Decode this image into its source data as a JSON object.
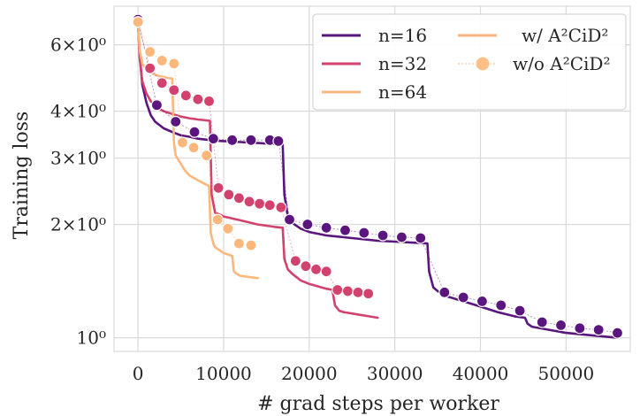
{
  "colors": {
    "n16": "#5a167e",
    "n32": "#d1426f",
    "n64": "#fcb77c",
    "grid": "#d9d9d9",
    "axes_bg": "#ffffff",
    "legend_line": "#fbb37c",
    "legend_marker": "#fdbf86"
  },
  "chart_data": {
    "type": "line",
    "xlabel": "# grad steps per worker",
    "ylabel": "Training loss",
    "yscale": "log",
    "xlim": [
      -2800,
      57500
    ],
    "ylim": [
      0.92,
      7.6
    ],
    "xticks": [
      0,
      10000,
      20000,
      30000,
      40000,
      50000
    ],
    "xtick_labels": [
      "0",
      "10000",
      "20000",
      "30000",
      "40000",
      "50000"
    ],
    "yticks": [
      1,
      2,
      3,
      4,
      6
    ],
    "ytick_labels": [
      "10⁰",
      "2×10⁰",
      "3×10⁰",
      "4×10⁰",
      "6×10⁰"
    ],
    "grid": true,
    "legend_position": "top-right",
    "legend": [
      "n=16",
      "n=32",
      "n=64",
      "w/ A²CiD²",
      "w/o A²CiD²"
    ],
    "series": [
      {
        "name": "n=16",
        "color_key": "n16",
        "style": "solid",
        "x": [
          0,
          200,
          500,
          1000,
          1500,
          2000,
          3000,
          4000,
          5000,
          6000,
          7000,
          8000,
          9000,
          10000,
          11000,
          12000,
          13000,
          14000,
          15000,
          16000,
          16900,
          17100,
          17500,
          18000,
          19000,
          20000,
          22000,
          24000,
          26000,
          28000,
          30000,
          32000,
          33800,
          34000,
          34500,
          35000,
          36000,
          38000,
          40000,
          42000,
          44000,
          45200,
          45500,
          46000,
          48000,
          50000,
          52000,
          54000,
          56000
        ],
        "y": [
          6.9,
          5.6,
          4.7,
          4.2,
          3.9,
          3.75,
          3.6,
          3.52,
          3.45,
          3.42,
          3.38,
          3.36,
          3.34,
          3.33,
          3.32,
          3.31,
          3.3,
          3.29,
          3.28,
          3.27,
          3.26,
          2.4,
          2.1,
          2.02,
          1.95,
          1.91,
          1.87,
          1.85,
          1.83,
          1.81,
          1.8,
          1.79,
          1.78,
          1.5,
          1.36,
          1.33,
          1.29,
          1.25,
          1.21,
          1.17,
          1.14,
          1.13,
          1.09,
          1.07,
          1.05,
          1.03,
          1.02,
          1.01,
          1.0
        ]
      },
      {
        "name": "n=32",
        "color_key": "n32",
        "style": "solid",
        "x": [
          0,
          200,
          500,
          1000,
          1500,
          2000,
          2500,
          3000,
          4000,
          5000,
          6000,
          7000,
          8000,
          8400,
          8600,
          9000,
          10000,
          12000,
          14000,
          16000,
          16900,
          17100,
          17500,
          18000,
          19000,
          20000,
          21000,
          22000,
          22700,
          23000,
          23500,
          24000,
          25000,
          26000,
          27000,
          28000
        ],
        "y": [
          6.9,
          5.5,
          4.8,
          4.45,
          4.25,
          4.15,
          4.05,
          4.0,
          3.93,
          3.87,
          3.83,
          3.8,
          3.78,
          3.77,
          2.4,
          2.15,
          2.1,
          2.05,
          2.0,
          1.97,
          1.96,
          1.62,
          1.52,
          1.48,
          1.42,
          1.39,
          1.37,
          1.35,
          1.34,
          1.22,
          1.18,
          1.17,
          1.16,
          1.15,
          1.14,
          1.13
        ]
      },
      {
        "name": "n=64",
        "color_key": "n64",
        "style": "solid",
        "x": [
          0,
          200,
          500,
          1000,
          1500,
          2000,
          2500,
          3000,
          3500,
          4000,
          4200,
          4400,
          5000,
          5500,
          6000,
          7000,
          8000,
          8300,
          8500,
          8800,
          9000,
          10000,
          11000,
          11200,
          11500,
          12000,
          13000,
          14000
        ],
        "y": [
          6.9,
          5.8,
          5.35,
          5.15,
          5.05,
          5.0,
          4.95,
          4.93,
          4.9,
          4.88,
          3.3,
          3.05,
          2.9,
          2.78,
          2.7,
          2.62,
          2.55,
          2.53,
          1.9,
          1.78,
          1.74,
          1.68,
          1.65,
          1.5,
          1.48,
          1.46,
          1.45,
          1.44
        ]
      },
      {
        "name": "n=16 w/o A²CiD²",
        "color_key": "n16",
        "style": "markers",
        "x": [
          0,
          2200,
          4400,
          6600,
          8800,
          11000,
          13200,
          15400,
          16400,
          17700,
          19800,
          22000,
          24200,
          26400,
          28600,
          30800,
          33000,
          35800,
          38000,
          40200,
          42400,
          44600,
          47200,
          49400,
          51600,
          53800,
          56000
        ],
        "y": [
          7.0,
          4.15,
          3.75,
          3.52,
          3.38,
          3.35,
          3.35,
          3.35,
          3.33,
          2.06,
          2.0,
          1.96,
          1.93,
          1.9,
          1.87,
          1.85,
          1.84,
          1.32,
          1.28,
          1.25,
          1.22,
          1.18,
          1.1,
          1.08,
          1.06,
          1.05,
          1.03
        ]
      },
      {
        "name": "n=32 w/o A²CiD²",
        "color_key": "n32",
        "style": "markers",
        "x": [
          0,
          1400,
          2800,
          4200,
          5600,
          7000,
          8300,
          9400,
          10600,
          11800,
          13000,
          14200,
          15400,
          16700,
          18400,
          19600,
          20800,
          22000,
          23300,
          24500,
          25700,
          26900
        ],
        "y": [
          6.9,
          5.2,
          4.75,
          4.55,
          4.4,
          4.3,
          4.25,
          2.5,
          2.4,
          2.35,
          2.3,
          2.27,
          2.25,
          2.22,
          1.6,
          1.55,
          1.52,
          1.5,
          1.34,
          1.33,
          1.32,
          1.31
        ]
      },
      {
        "name": "n=64 w/o A²CiD²",
        "color_key": "n64",
        "style": "markers",
        "x": [
          0,
          1400,
          2800,
          4200,
          5200,
          6500,
          8000,
          9300,
          10500,
          11800,
          13200
        ],
        "y": [
          6.9,
          5.75,
          5.45,
          5.35,
          3.3,
          3.2,
          3.05,
          2.06,
          1.95,
          1.78,
          1.76
        ]
      }
    ]
  }
}
